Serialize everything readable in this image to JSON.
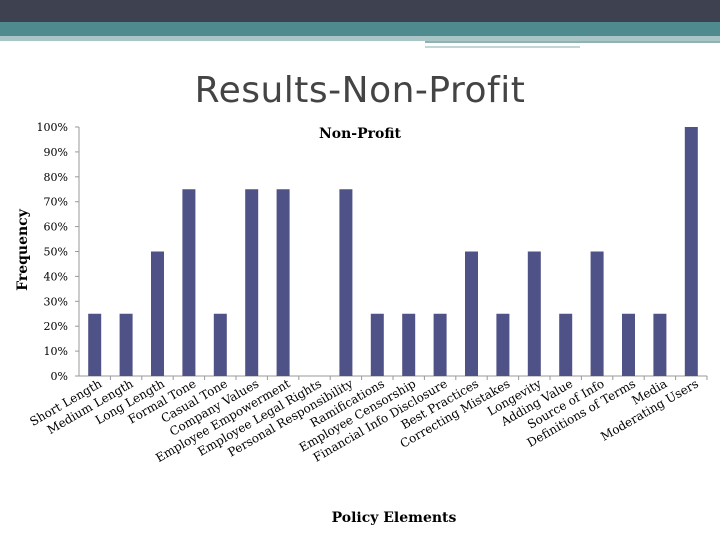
{
  "slide": {
    "title": "Results-Non-Profit"
  },
  "colors": {
    "bar": "#4f5286",
    "axis": "#999999",
    "text": "#000000"
  },
  "chart_data": {
    "type": "bar",
    "title": "Non-Profit",
    "xlabel": "Policy Elements",
    "ylabel": "Frequency",
    "ylim": [
      0,
      100
    ],
    "yticks": [
      "0%",
      "10%",
      "20%",
      "30%",
      "40%",
      "50%",
      "60%",
      "70%",
      "80%",
      "90%",
      "100%"
    ],
    "grid": false,
    "categories": [
      "Short Length",
      "Medium Length",
      "Long Length",
      "Formal Tone",
      "Casual Tone",
      "Company Values",
      "Employee Empowerment",
      "Employee Legal Rights",
      "Personal Responsibility",
      "Ramifications",
      "Employee Censorship",
      "Financial Info Disclosure",
      "Best Practices",
      "Correcting Mistakes",
      "Longevity",
      "Adding Value",
      "Source of Info",
      "Definitions of Terms",
      "Media",
      "Moderating Users"
    ],
    "values": [
      25,
      25,
      50,
      75,
      25,
      75,
      75,
      0,
      75,
      25,
      25,
      25,
      50,
      25,
      50,
      25,
      50,
      25,
      25,
      100
    ]
  }
}
